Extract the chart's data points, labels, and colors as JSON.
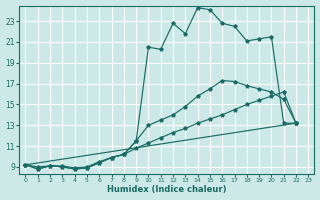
{
  "bg_color": "#cce9e7",
  "grid_color": "#b0d8d5",
  "line_color": "#1a6b65",
  "xlabel": "Humidex (Indice chaleur)",
  "xlim": [
    -0.5,
    23.5
  ],
  "ylim": [
    8.3,
    24.5
  ],
  "xticks": [
    0,
    1,
    2,
    3,
    4,
    5,
    6,
    7,
    8,
    9,
    10,
    11,
    12,
    13,
    14,
    15,
    16,
    17,
    18,
    19,
    20,
    21,
    22,
    23
  ],
  "yticks": [
    9,
    11,
    13,
    15,
    17,
    19,
    21,
    23
  ],
  "line1_x": [
    0,
    1,
    2,
    3,
    4,
    5,
    6,
    7,
    8,
    9,
    10,
    11,
    12,
    13,
    14,
    15,
    16,
    17,
    18,
    19,
    20,
    21,
    22
  ],
  "line1_y": [
    9.2,
    8.8,
    9.1,
    9.0,
    8.8,
    8.9,
    9.4,
    9.9,
    10.2,
    11.5,
    20.5,
    20.3,
    22.8,
    21.8,
    24.3,
    24.1,
    22.8,
    22.5,
    21.1,
    21.3,
    21.5,
    13.2,
    13.2
  ],
  "line2_x": [
    0,
    1,
    2,
    3,
    4,
    5,
    6,
    7,
    8,
    9,
    10,
    11,
    12,
    13,
    14,
    15,
    16,
    17,
    18,
    19,
    20,
    21,
    22
  ],
  "line2_y": [
    9.2,
    8.8,
    9.1,
    9.0,
    8.8,
    8.9,
    9.4,
    9.9,
    10.2,
    11.5,
    13.0,
    13.5,
    14.0,
    14.8,
    15.8,
    16.5,
    17.3,
    17.2,
    16.8,
    16.5,
    16.2,
    15.5,
    13.2
  ],
  "line3_x": [
    0,
    22
  ],
  "line3_y": [
    9.2,
    13.2
  ],
  "line4_x": [
    0,
    1,
    2,
    3,
    4,
    5,
    6,
    7,
    8,
    9,
    10,
    11,
    12,
    13,
    14,
    15,
    16,
    17,
    18,
    19,
    20,
    21,
    22
  ],
  "line4_y": [
    9.2,
    9.0,
    9.1,
    9.1,
    8.9,
    9.0,
    9.5,
    9.9,
    10.2,
    10.8,
    11.3,
    11.8,
    12.3,
    12.7,
    13.2,
    13.6,
    14.0,
    14.5,
    15.0,
    15.4,
    15.8,
    16.2,
    13.2
  ]
}
